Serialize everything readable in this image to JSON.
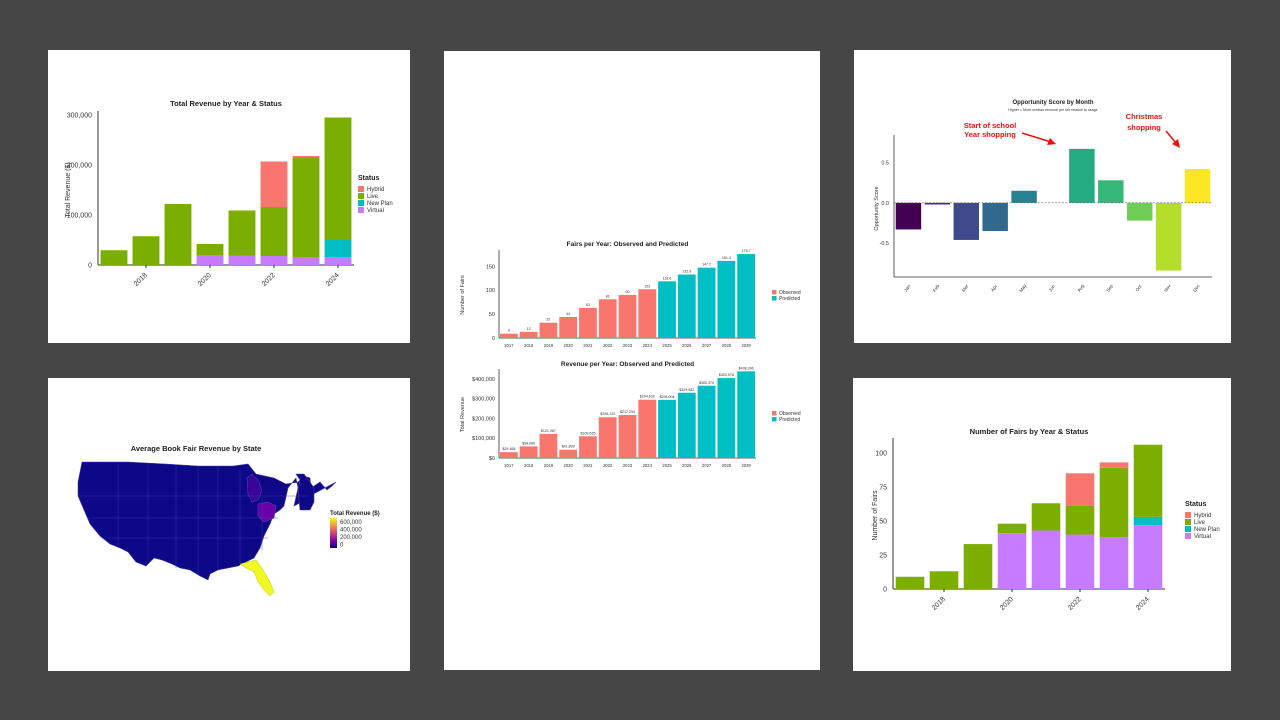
{
  "chart_data": [
    {
      "type": "bar",
      "stacked": true,
      "title": "Total Revenue by Year & Status",
      "ylabel": "Total Revenue ($)",
      "ylim": [
        0,
        300000
      ],
      "yticks": [
        "0",
        "100,000",
        "200,000",
        "300,000"
      ],
      "x": [
        2017,
        2018,
        2019,
        2020,
        2021,
        2022,
        2023,
        2024
      ],
      "xticks": [
        "2018",
        "2020",
        "2022",
        "2024"
      ],
      "legend_title": "Status",
      "legend_position": "right",
      "series": [
        {
          "name": "Virtual",
          "color": "#c77cff",
          "values": [
            0,
            0,
            0,
            20000,
            19000,
            18000,
            16000,
            16000
          ]
        },
        {
          "name": "New Plan",
          "color": "#00bfc4",
          "values": [
            0,
            0,
            0,
            0,
            0,
            0,
            0,
            34000
          ]
        },
        {
          "name": "Live",
          "color": "#7cae00",
          "values": [
            29500,
            57500,
            122000,
            22000,
            90000,
            98000,
            199000,
            245000
          ]
        },
        {
          "name": "Hybrid",
          "color": "#f8766d",
          "values": [
            0,
            0,
            0,
            0,
            0,
            91000,
            3000,
            0
          ]
        }
      ]
    },
    {
      "type": "bar",
      "title": "Fairs per Year: Observed and Predicted",
      "ylabel": "Number of Fairs",
      "ylim": [
        0,
        180
      ],
      "yticks": [
        "0",
        "50",
        "100",
        "150"
      ],
      "categories": [
        "2017",
        "2018",
        "2019",
        "2020",
        "2021",
        "2022",
        "2023",
        "2024",
        "2025",
        "2026",
        "2027",
        "2028",
        "2029"
      ],
      "values": [
        9,
        13,
        32,
        44,
        63,
        81,
        90,
        102,
        118.6,
        132.9,
        147.2,
        161.4,
        175.7
      ],
      "labels": [
        "9",
        "13",
        "32",
        "44",
        "63",
        "81",
        "90",
        "102",
        "118.6",
        "132.9",
        "147.2",
        "161.4",
        "175.7"
      ],
      "group": [
        "Observed",
        "Observed",
        "Observed",
        "Observed",
        "Observed",
        "Observed",
        "Observed",
        "Observed",
        "Predicted",
        "Predicted",
        "Predicted",
        "Predicted",
        "Predicted"
      ],
      "legend": [
        {
          "name": "Observed",
          "color": "#f8766d"
        },
        {
          "name": "Predicted",
          "color": "#00bfc4"
        }
      ],
      "legend_position": "right"
    },
    {
      "type": "bar",
      "title": "Revenue per Year: Observed and Predicted",
      "ylabel": "Total Revenue",
      "ylim": [
        0,
        440000
      ],
      "yticks": [
        "$0",
        "$100,000",
        "$200,000",
        "$300,000",
        "$400,000"
      ],
      "categories": [
        "2017",
        "2018",
        "2019",
        "2020",
        "2021",
        "2022",
        "2023",
        "2024",
        "2025",
        "2026",
        "2027",
        "2028",
        "2029"
      ],
      "values": [
        29468,
        58666,
        121987,
        41899,
        109535,
        206120,
        217294,
        294632,
        294004,
        329962,
        365370,
        403978,
        438396
      ],
      "labels": [
        "$29,468",
        "$58,666",
        "$121,987",
        "$41,899",
        "$109,535",
        "$206,120",
        "$217,294",
        "$294,632",
        "$294,004",
        "$329,962",
        "$365,370",
        "$403,978",
        "$438,396"
      ],
      "group": [
        "Observed",
        "Observed",
        "Observed",
        "Observed",
        "Observed",
        "Observed",
        "Observed",
        "Observed",
        "Predicted",
        "Predicted",
        "Predicted",
        "Predicted",
        "Predicted"
      ],
      "legend": [
        {
          "name": "Observed",
          "color": "#f8766d"
        },
        {
          "name": "Predicted",
          "color": "#00bfc4"
        }
      ],
      "legend_position": "right"
    },
    {
      "type": "bar",
      "title": "Opportunity Score by Month",
      "subtitle": "Higher = More median revenue per fair relative to usage",
      "ylabel": "Opportunity Score",
      "ylim": [
        -0.92,
        0.78
      ],
      "yticks": [
        {
          "v": -0.5,
          "t": "-0.5"
        },
        {
          "v": 0,
          "t": "0.0"
        },
        {
          "v": 0.5,
          "t": "0.5"
        }
      ],
      "categories": [
        "Jan",
        "Feb",
        "Mar",
        "Apr",
        "May",
        "Jun",
        "Aug",
        "Sep",
        "Oct",
        "Nov",
        "Dec"
      ],
      "values": [
        -0.33,
        -0.02,
        -0.46,
        -0.35,
        0.15,
        0,
        0.67,
        0.28,
        -0.22,
        -0.84,
        0.42
      ],
      "colors": [
        "#440154",
        "#482878",
        "#3e4a89",
        "#31688e",
        "#26828e",
        "#1f9e89",
        "#25ab82",
        "#35b779",
        "#6ece58",
        "#b5de2b",
        "#fde725"
      ],
      "annotations": [
        {
          "text": [
            "Start of school",
            "Year shopping"
          ],
          "color": "#ee1111"
        },
        {
          "text": [
            "Christmas",
            "shopping"
          ],
          "color": "#ee1111"
        }
      ]
    },
    {
      "type": "map",
      "title": "Average Book Fair Revenue by State",
      "legend_title": "Total Revenue ($)",
      "legend_ticks": [
        "600,000",
        "400,000",
        "200,000",
        "0"
      ],
      "colorscale": [
        "#0d0887",
        "#7e03a8",
        "#cc4778",
        "#f89540",
        "#f0f921"
      ],
      "highlights": [
        {
          "state": "Florida",
          "level": "high",
          "color": "#f0f921"
        },
        {
          "state": "Ohio",
          "level": "medium",
          "color": "#6a00a8"
        },
        {
          "state": "Michigan",
          "level": "low-medium",
          "color": "#3a049a"
        }
      ]
    },
    {
      "type": "bar",
      "stacked": true,
      "title": "Number of Fairs by Year & Status",
      "ylabel": "Number of Fairs",
      "ylim": [
        0,
        108
      ],
      "yticks": [
        "0",
        "25",
        "50",
        "75",
        "100"
      ],
      "x": [
        2017,
        2018,
        2019,
        2020,
        2021,
        2022,
        2023,
        2024
      ],
      "xticks": [
        "2018",
        "2020",
        "2022",
        "2024"
      ],
      "legend_title": "Status",
      "legend_position": "right",
      "series": [
        {
          "name": "Virtual",
          "color": "#c77cff",
          "values": [
            0,
            0,
            0,
            41,
            43,
            40,
            38,
            47
          ]
        },
        {
          "name": "New Plan",
          "color": "#00bfc4",
          "values": [
            0,
            0,
            0,
            0,
            0,
            0,
            0,
            6
          ]
        },
        {
          "name": "Live",
          "color": "#7cae00",
          "values": [
            9,
            13,
            33,
            7,
            20,
            21,
            51,
            53
          ]
        },
        {
          "name": "Hybrid",
          "color": "#f8766d",
          "values": [
            0,
            0,
            0,
            0,
            0,
            24,
            4,
            0
          ]
        }
      ]
    }
  ]
}
